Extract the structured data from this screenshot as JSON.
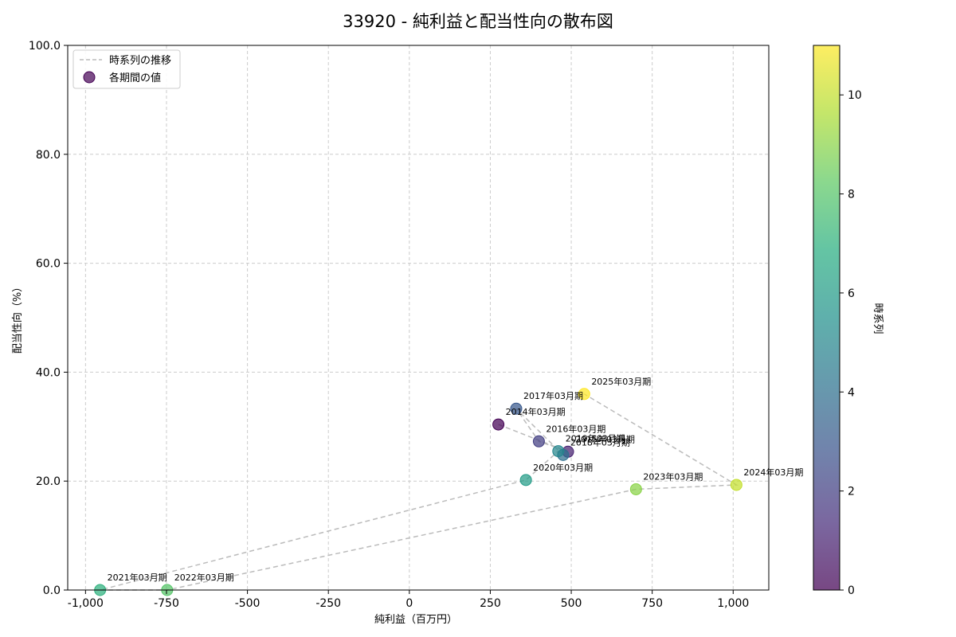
{
  "chart_data": {
    "type": "scatter",
    "title": "33920 - 純利益と配当性向の散布図",
    "xlabel": "純利益（百万円）",
    "ylabel": "配当性向（%）",
    "xlim": [
      -1055,
      1110
    ],
    "ylim": [
      0,
      100
    ],
    "x_ticks": [
      -1000,
      -750,
      -500,
      -250,
      0,
      250,
      500,
      750,
      1000
    ],
    "x_tick_labels": [
      "-1,000",
      "-750",
      "-500",
      "-250",
      "0",
      "250",
      "500",
      "750",
      "1,000"
    ],
    "y_ticks": [
      0,
      20,
      40,
      60,
      80,
      100
    ],
    "y_tick_labels": [
      "0.0",
      "20.0",
      "40.0",
      "60.0",
      "80.0",
      "100.0"
    ],
    "grid": true,
    "legend_position": "top-left",
    "legend": [
      {
        "kind": "line",
        "label": "時系列の推移"
      },
      {
        "kind": "marker",
        "label": "各期間の値"
      }
    ],
    "colorbar": {
      "label": "時系列",
      "range": [
        0,
        11
      ],
      "ticks": [
        0,
        2,
        4,
        6,
        8,
        10
      ],
      "tick_labels": [
        "0",
        "2",
        "4",
        "6",
        "8",
        "10"
      ],
      "colormap": "viridis"
    },
    "colors": {
      "trend_line": "#bbbbbb",
      "grid": "#cccccc"
    },
    "points": [
      {
        "label": "2014年03月期",
        "x": 275,
        "y": 30.4,
        "t": 0
      },
      {
        "label": "2015年03月期",
        "x": 490,
        "y": 25.4,
        "t": 1
      },
      {
        "label": "2016年03月期",
        "x": 400,
        "y": 27.3,
        "t": 2
      },
      {
        "label": "2017年03月期",
        "x": 330,
        "y": 33.3,
        "t": 3
      },
      {
        "label": "2018年03月期",
        "x": 475,
        "y": 24.8,
        "t": 4
      },
      {
        "label": "2019年03月期",
        "x": 460,
        "y": 25.5,
        "t": 5
      },
      {
        "label": "2020年03月期",
        "x": 360,
        "y": 20.2,
        "t": 6
      },
      {
        "label": "2021年03月期",
        "x": -955,
        "y": 0.0,
        "t": 7
      },
      {
        "label": "2022年03月期",
        "x": -748,
        "y": 0.0,
        "t": 8
      },
      {
        "label": "2023年03月期",
        "x": 700,
        "y": 18.5,
        "t": 9
      },
      {
        "label": "2024年03月期",
        "x": 1010,
        "y": 19.3,
        "t": 10
      },
      {
        "label": "2025年03月期",
        "x": 540,
        "y": 36.0,
        "t": 11
      }
    ]
  }
}
